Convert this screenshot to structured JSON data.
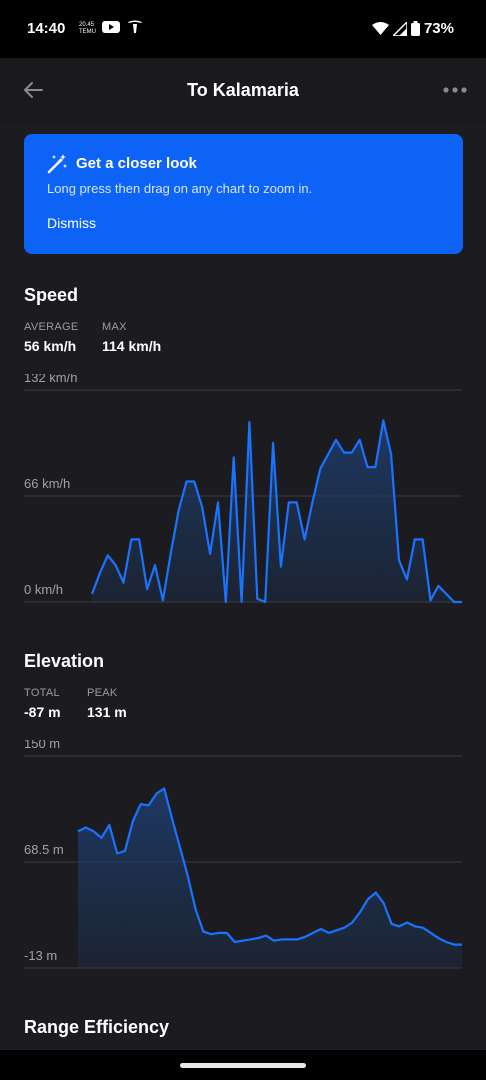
{
  "status_bar": {
    "time": "14:40",
    "battery": "73%",
    "left_icons": [
      "weather-icon",
      "youtube-icon",
      "tesla-icon"
    ],
    "right_icons": [
      "wifi-icon",
      "signal-icon",
      "battery-icon"
    ]
  },
  "app_bar": {
    "title": "To Kalamaria",
    "back_icon": "arrow-left-icon",
    "more_icon": "more-horizontal-icon"
  },
  "banner": {
    "title": "Get a closer look",
    "text": "Long press then drag on any chart to zoom in.",
    "dismiss": "Dismiss",
    "icon": "magic-wand-icon",
    "color": "#0d63f5"
  },
  "speed": {
    "title": "Speed",
    "average_label": "AVERAGE",
    "average_value": "56 km/h",
    "max_label": "MAX",
    "max_value": "114 km/h"
  },
  "elevation": {
    "title": "Elevation",
    "total_label": "TOTAL",
    "total_value": "-87 m",
    "peak_label": "PEAK",
    "peak_value": "131 m"
  },
  "range_efficiency": {
    "title": "Range Efficiency"
  },
  "colors": {
    "line": "#1a73ff",
    "fill_top": "#1d3a66",
    "background": "#1c1c20",
    "grid": "#3a3a40"
  },
  "chart_data": [
    {
      "type": "area",
      "title": "Speed",
      "ylim": [
        0,
        132
      ],
      "y_ticks": [
        "132 km/h",
        "66 km/h",
        "0 km/h"
      ],
      "y_tick_values": [
        132,
        66,
        0
      ],
      "x": [
        0,
        1,
        2,
        3,
        4,
        5,
        6,
        7,
        8,
        9,
        10,
        11,
        12,
        13,
        14,
        15,
        16,
        17,
        18,
        19,
        20,
        21,
        22,
        23,
        24,
        25,
        26,
        27,
        28,
        29,
        30,
        31,
        32,
        33,
        34,
        35,
        36,
        37,
        38,
        39,
        40,
        41,
        42,
        43,
        44,
        45,
        46,
        47
      ],
      "values": [
        5,
        18,
        29,
        23,
        12,
        39,
        39,
        8,
        23,
        1,
        30,
        57,
        75,
        75,
        59,
        30,
        62,
        0,
        90,
        0,
        112,
        2,
        0,
        99,
        22,
        62,
        62,
        39,
        62,
        83,
        92,
        101,
        93,
        93,
        101,
        84,
        84,
        113,
        92,
        26,
        14,
        39,
        39,
        1,
        10,
        5,
        0,
        0
      ]
    },
    {
      "type": "area",
      "title": "Elevation",
      "ylim": [
        -13,
        150
      ],
      "y_ticks": [
        "150 m",
        "68.5 m",
        "-13 m"
      ],
      "y_tick_values": [
        150,
        68.5,
        -13
      ],
      "x": [
        0,
        1,
        2,
        3,
        4,
        5,
        6,
        7,
        8,
        9,
        10,
        11,
        12,
        13,
        14,
        15,
        16,
        17,
        18,
        19,
        20,
        21,
        22,
        23,
        24,
        25,
        26,
        27,
        28,
        29,
        30,
        31,
        32,
        33,
        34,
        35,
        36,
        37,
        38,
        39,
        40,
        41,
        42,
        43,
        44,
        45,
        46,
        47,
        48,
        49
      ],
      "values": [
        92,
        95,
        92,
        87,
        97,
        75,
        77,
        100,
        113,
        112,
        121,
        125,
        102,
        80,
        58,
        32,
        15,
        13,
        14,
        14,
        7,
        8,
        9,
        10,
        12,
        8,
        9,
        9,
        9,
        11,
        14,
        17,
        14,
        16,
        18,
        22,
        30,
        40,
        45,
        37,
        21,
        19,
        22,
        19,
        18,
        14,
        10,
        7,
        5,
        5
      ]
    }
  ]
}
